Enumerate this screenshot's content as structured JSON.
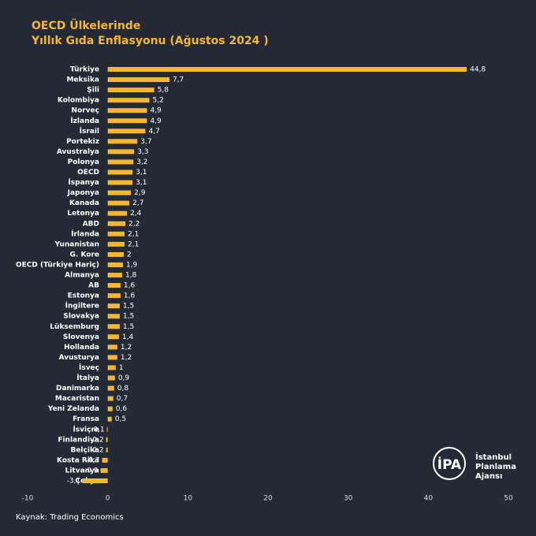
{
  "chart_data": {
    "type": "barh",
    "title": "OECD Ülkelerinde",
    "subtitle": "Yıllık Gıda Enflasyonu (Ağustos 2024 )",
    "categories": [
      "Türkiye",
      "Meksika",
      "Şili",
      "Kolombiya",
      "Norveç",
      "İzlanda",
      "İsrail",
      "Portekiz",
      "Avustralya",
      "Polonya",
      "OECD",
      "İspanya",
      "Japonya",
      "Kanada",
      "Letonya",
      "ABD",
      "İrlanda",
      "Yunanistan",
      "G. Kore",
      "OECD (Türkiye Hariç)",
      "Almanya",
      "AB",
      "Estonya",
      "İngiltere",
      "Slovakya",
      "Lüksemburg",
      "Slovenya",
      "Hollanda",
      "Avusturya",
      "İsveç",
      "İtalya",
      "Danimarka",
      "Macaristan",
      "Yeni Zelanda",
      "Fransa",
      "İsviçre",
      "Finlandiya",
      "Belçika",
      "Kosta Rika",
      "Litvanya",
      "Çekya"
    ],
    "values": [
      44.8,
      7.7,
      5.8,
      5.2,
      4.9,
      4.9,
      4.7,
      3.7,
      3.3,
      3.2,
      3.1,
      3.1,
      2.9,
      2.7,
      2.4,
      2.2,
      2.1,
      2.1,
      2,
      1.9,
      1.8,
      1.6,
      1.6,
      1.5,
      1.5,
      1.5,
      1.4,
      1.2,
      1.2,
      1,
      0.9,
      0.8,
      0.7,
      0.6,
      0.5,
      -0.1,
      -0.2,
      -0.2,
      -0.7,
      -0.9,
      -3.1
    ],
    "value_labels": [
      "44,8",
      "7,7",
      "5,8",
      "5,2",
      "4,9",
      "4,9",
      "4,7",
      "3,7",
      "3,3",
      "3,2",
      "3,1",
      "3,1",
      "2,9",
      "2,7",
      "2,4",
      "2,2",
      "2,1",
      "2,1",
      "2",
      "1,9",
      "1,8",
      "1,6",
      "1,6",
      "1,5",
      "1,5",
      "1,5",
      "1,4",
      "1,2",
      "1,2",
      "1",
      "0,9",
      "0,8",
      "0,7",
      "0,6",
      "0,5",
      "-0,1",
      "-0,2",
      "-0,2",
      "-0,7",
      "-0,9",
      "-3,1"
    ],
    "color": "#f5b731",
    "xlim": [
      -10,
      50
    ],
    "xticks": [
      -10,
      0,
      10,
      20,
      30,
      40,
      50
    ],
    "grid": false,
    "source": "Kaynak: Trading Economics"
  },
  "logo": {
    "abbr": "İPA",
    "name": [
      "İstanbul",
      "Planlama",
      "Ajansı"
    ]
  }
}
